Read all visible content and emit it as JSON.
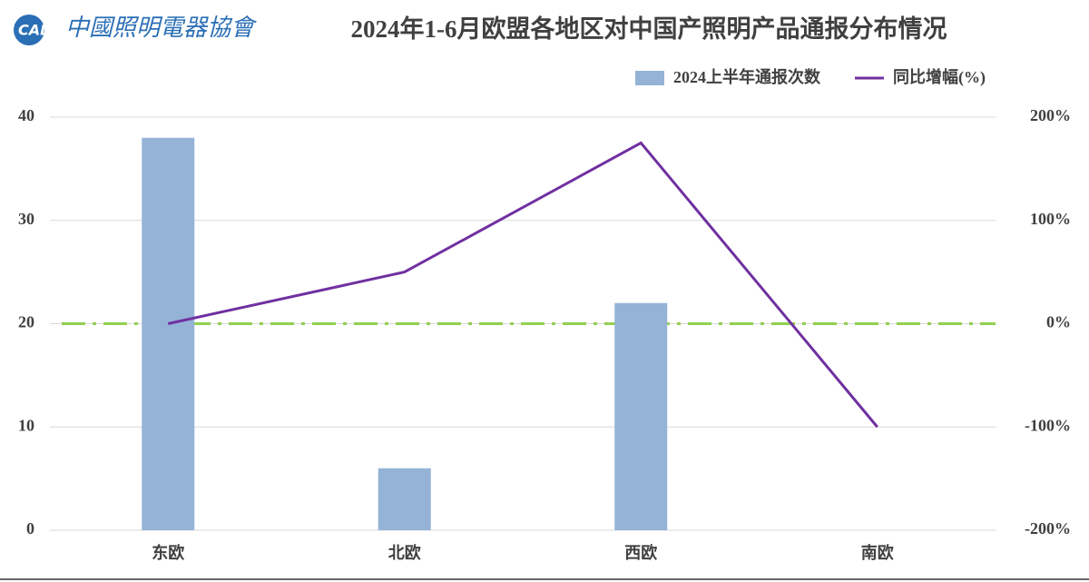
{
  "logo": {
    "mark": "CALI",
    "name": "中國照明電器協會"
  },
  "chart_data": {
    "type": "combo",
    "title": "2024年1-6月欧盟各地区对中国产照明产品通报分布情况",
    "categories": [
      "东欧",
      "北欧",
      "西欧",
      "南欧"
    ],
    "series": [
      {
        "name": "2024上半年通报次数",
        "type": "bar",
        "axis": "y",
        "color": "#95b3d7",
        "values": [
          38,
          6,
          22,
          0
        ]
      },
      {
        "name": "同比增幅(%)",
        "type": "line",
        "axis": "y2",
        "color": "#7030a0",
        "values": [
          0,
          50,
          175,
          -100
        ]
      }
    ],
    "reference_line": {
      "axis": "y2",
      "value": 0,
      "color": "#92d050"
    },
    "ylim": [
      0,
      40
    ],
    "yticks": [
      0,
      10,
      20,
      30,
      40
    ],
    "y2lim": [
      -200,
      200
    ],
    "y2ticks": [
      {
        "value": -200,
        "label": "-200%"
      },
      {
        "value": -100,
        "label": "-100%"
      },
      {
        "value": 0,
        "label": "0%"
      },
      {
        "value": 100,
        "label": "100%"
      },
      {
        "value": 200,
        "label": "200%"
      }
    ],
    "grid": true,
    "legend": "top-right"
  }
}
